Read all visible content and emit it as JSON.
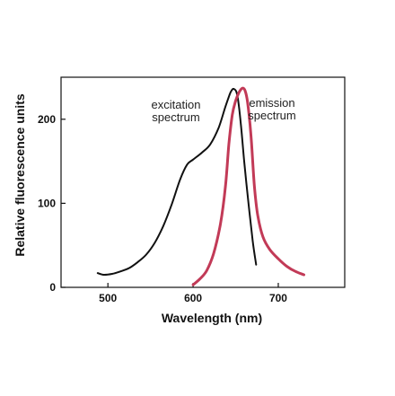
{
  "chart_data": {
    "type": "line",
    "xlabel": "Wavelength (nm)",
    "ylabel": "Relative fluorescence units",
    "xlim": [
      445,
      778
    ],
    "ylim": [
      0,
      250
    ],
    "x_ticks": [
      500,
      600,
      700
    ],
    "y_ticks": [
      0,
      100,
      200
    ],
    "grid": false,
    "colors": {
      "excitation": "#111111",
      "emission": "#c23a57"
    },
    "annotations": [
      {
        "series": "excitation",
        "lines": [
          "excitation",
          "spectrum"
        ]
      },
      {
        "series": "emission",
        "lines": [
          "emission",
          "spectrum"
        ]
      }
    ],
    "series": [
      {
        "name": "excitation",
        "x": [
          488,
          495,
          505,
          515,
          525,
          535,
          545,
          555,
          565,
          575,
          585,
          593,
          600,
          610,
          620,
          630,
          638,
          644,
          648,
          652,
          656,
          660,
          665,
          670,
          674
        ],
        "y": [
          17,
          15,
          16,
          19,
          23,
          30,
          39,
          53,
          73,
          99,
          129,
          146,
          152,
          160,
          170,
          190,
          215,
          232,
          236,
          228,
          195,
          150,
          100,
          55,
          27
        ]
      },
      {
        "name": "emission",
        "x": [
          600,
          608,
          616,
          624,
          632,
          638,
          642,
          646,
          650,
          654,
          658,
          661,
          664,
          668,
          672,
          676,
          682,
          690,
          700,
          710,
          720,
          730
        ],
        "y": [
          3,
          10,
          20,
          40,
          75,
          120,
          170,
          205,
          222,
          232,
          237,
          234,
          220,
          180,
          120,
          85,
          60,
          45,
          34,
          25,
          19,
          15
        ]
      }
    ]
  }
}
